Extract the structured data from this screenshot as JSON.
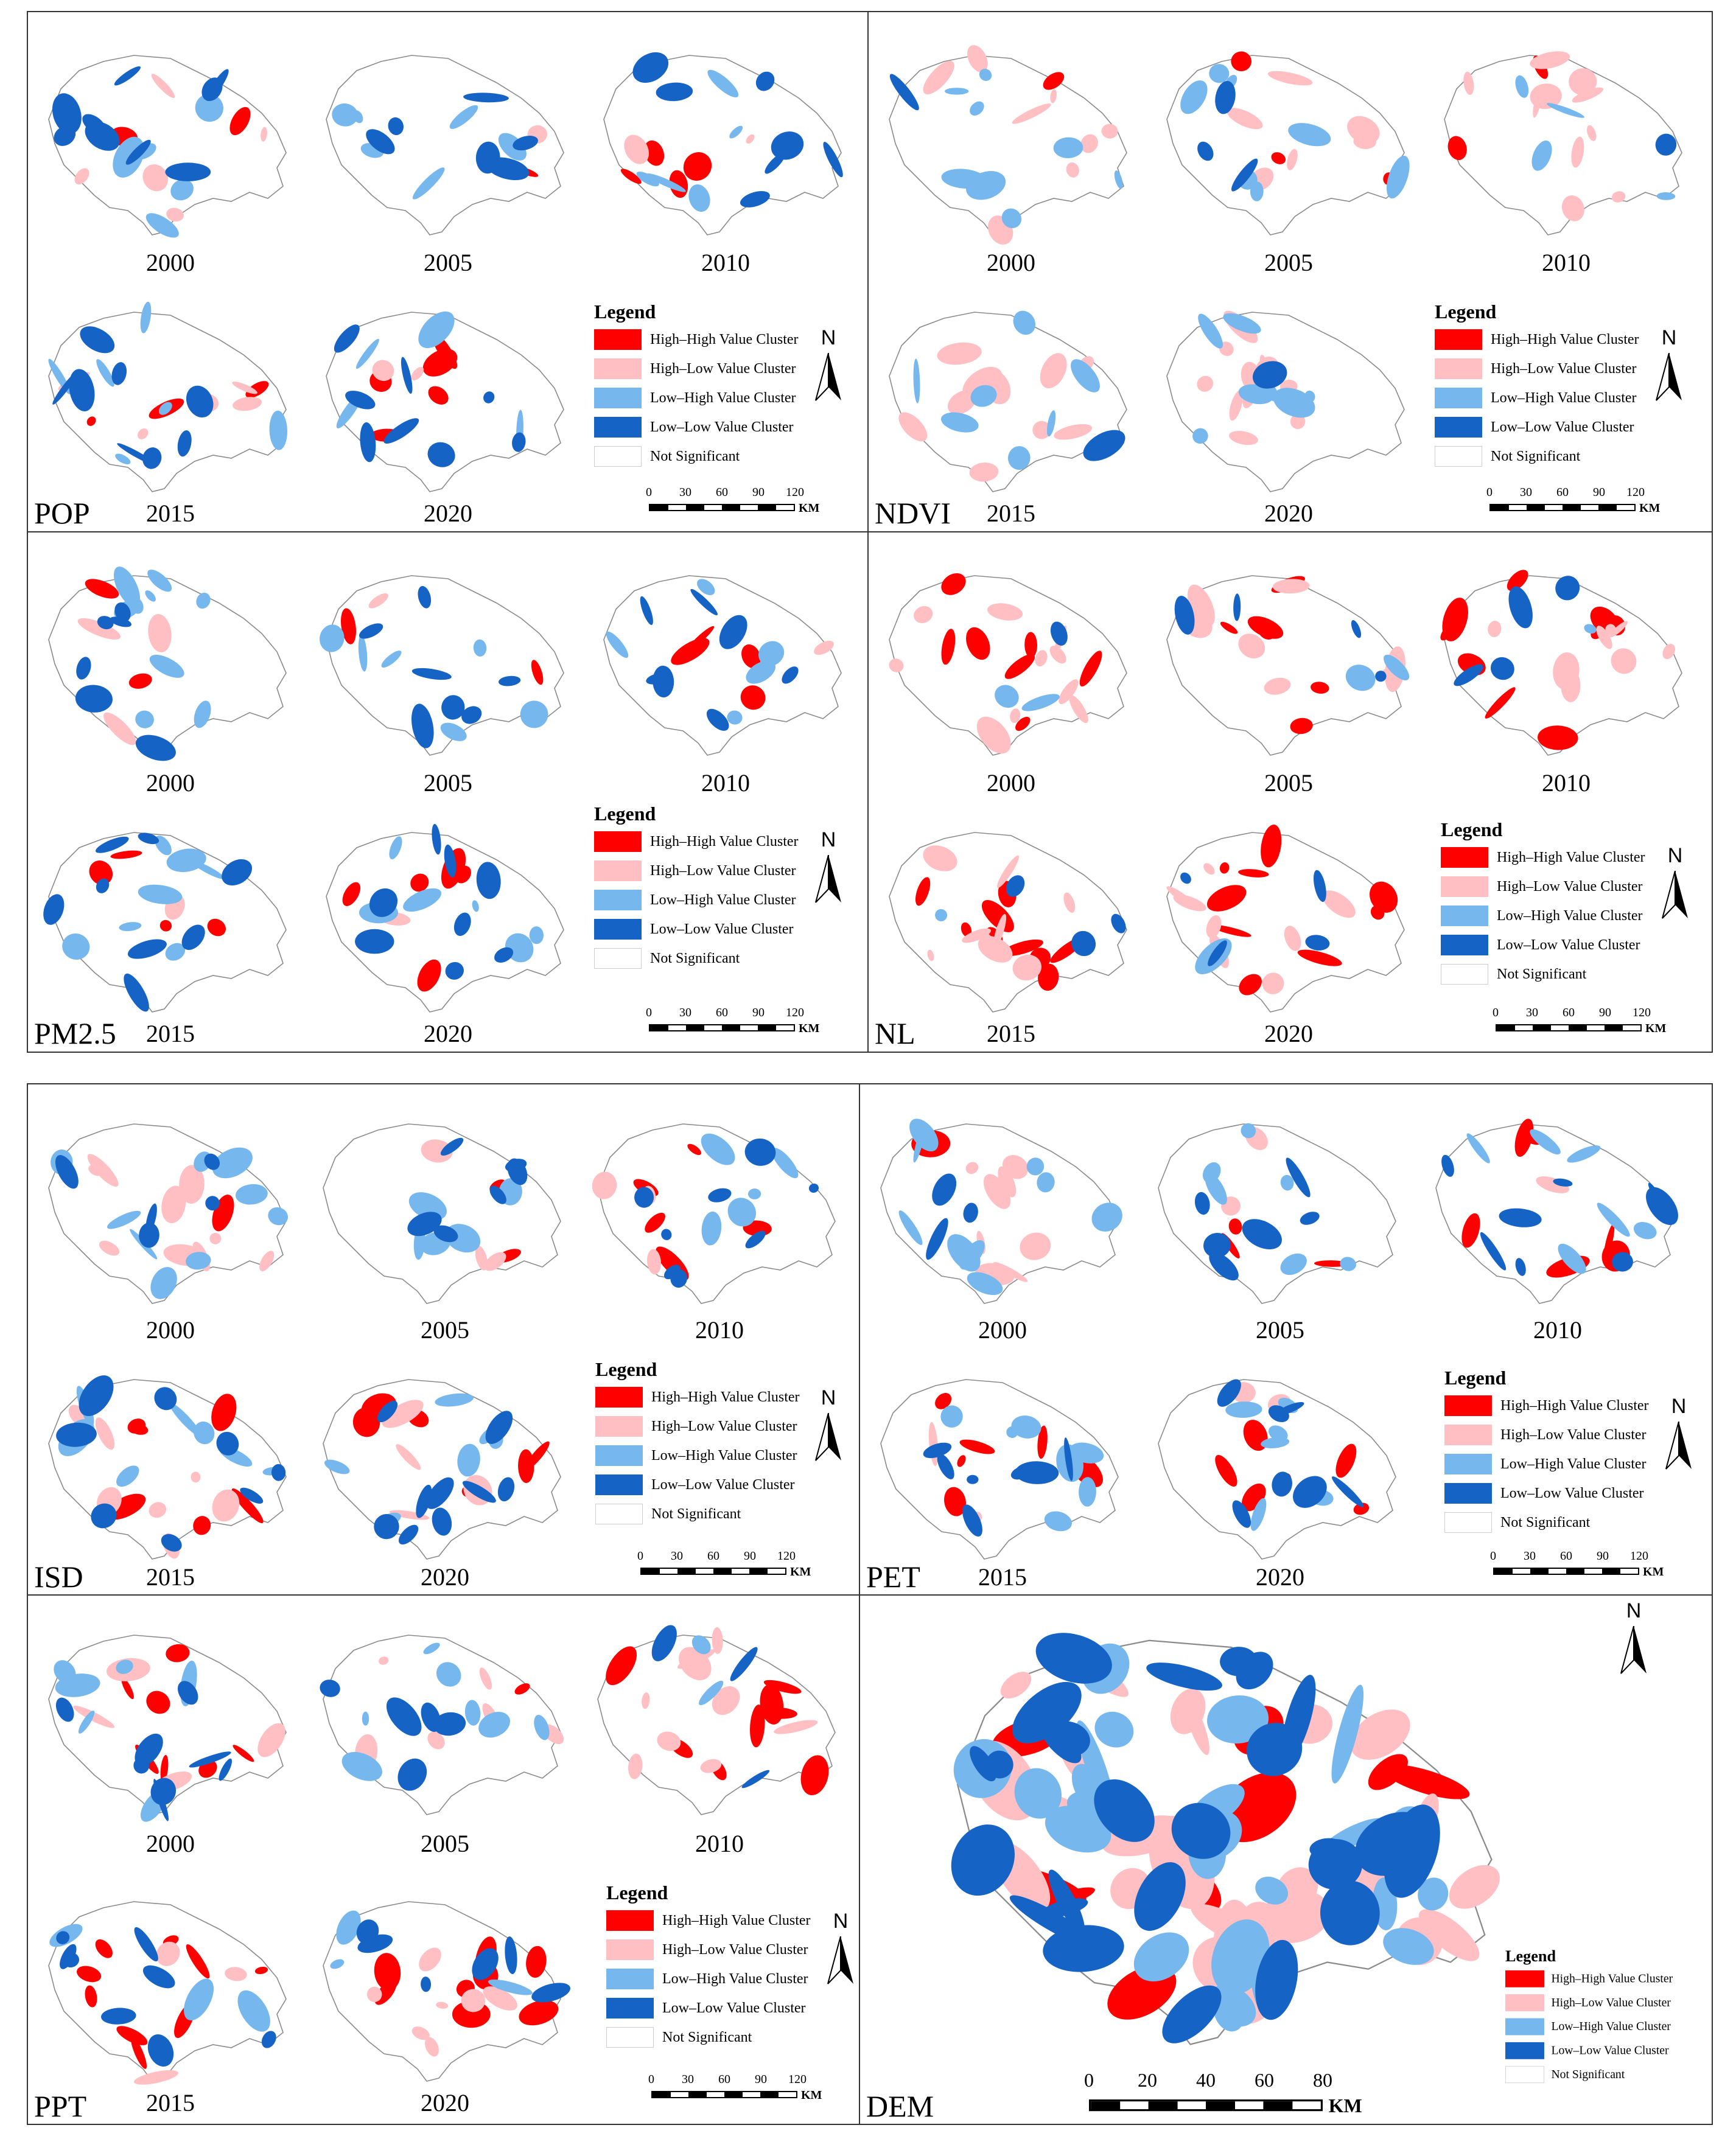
{
  "years": [
    "2000",
    "2005",
    "2010",
    "2015",
    "2020"
  ],
  "legend": {
    "title": "Legend",
    "items": [
      {
        "label": "High–High Value Cluster",
        "color": "#ff0000"
      },
      {
        "label": "High–Low Value Cluster",
        "color": "#ffbfc3"
      },
      {
        "label": "Low–High Value Cluster",
        "color": "#76b8ee"
      },
      {
        "label": "Low–Low Value Cluster",
        "color": "#1663c6"
      },
      {
        "label": "Not Significant",
        "color": "#ffffff"
      }
    ]
  },
  "north_label": "N",
  "scale": {
    "ticks": [
      "0",
      "30",
      "60",
      "90",
      "120"
    ],
    "unit": "KM"
  },
  "dem_scale": {
    "ticks": [
      "0",
      "20",
      "40",
      "60",
      "80"
    ],
    "unit": "KM"
  },
  "panels": {
    "pop": {
      "variable": "POP"
    },
    "ndvi": {
      "variable": "NDVI"
    },
    "pm25": {
      "variable": "PM2.5"
    },
    "nl": {
      "variable": "NL"
    },
    "isd": {
      "variable": "ISD"
    },
    "pet": {
      "variable": "PET"
    },
    "ppt": {
      "variable": "PPT"
    },
    "dem": {
      "variable": "DEM"
    }
  },
  "map_colors": {
    "hh": "#ff0000",
    "hl": "#ffbfc3",
    "lh": "#76b8ee",
    "ll": "#1663c6",
    "outline": "#8a8a8a"
  },
  "map_patterns": {
    "pop": [
      "hh:2,hl:5,lh:5,ll:9",
      "hh:1,hl:1,lh:6,ll:6",
      "hh:4,hl:2,lh:5,ll:7",
      "hh:3,hl:5,lh:6,ll:8",
      "hh:5,hl:2,lh:4,ll:8"
    ],
    "ndvi": [
      "hh:1,hl:9,lh:8,ll:1",
      "hh:3,hl:6,lh:7,ll:3",
      "hh:2,hl:10,lh:4,ll:1",
      "hh:0,hl:10,lh:7,ll:1",
      "hh:0,hl:11,lh:7,ll:1"
    ],
    "pm25": [
      "hh:2,hl:3,lh:9,ll:6",
      "hh:2,hl:1,lh:6,ll:7",
      "hh:4,hl:1,lh:5,ll:8",
      "hh:4,hl:1,lh:7,ll:8",
      "hh:5,hl:1,lh:6,ll:8"
    ],
    "nl": [
      "hh:8,hl:10,lh:2,ll:1",
      "hh:6,hl:7,lh:2,ll:4",
      "hh:9,hl:8,lh:1,ll:4",
      "hh:9,hl:9,lh:1,ll:3",
      "hh:9,hl:8,lh:1,ll:4"
    ],
    "isd": [
      "hh:1,hl:9,lh:9,ll:5",
      "hh:2,hl:3,lh:5,ll:6",
      "hh:5,hl:3,lh:5,ll:8",
      "hh:6,hl:7,lh:7,ll:8",
      "hh:6,hl:4,lh:6,ll:9"
    ],
    "pet": [
      "hh:1,hl:8,lh:9,ll:3",
      "hh:3,hl:2,lh:6,ll:6",
      "hh:6,hl:1,lh:6,ll:8",
      "hh:6,hl:2,lh:7,ll:7",
      "hh:7,hl:2,lh:6,ll:7"
    ],
    "ppt": [
      "hh:7,hl:5,lh:6,ll:8",
      "hh:1,hl:6,lh:7,ll:5",
      "hh:8,hl:9,lh:2,ll:3",
      "hh:9,hl:3,lh:3,ll:8",
      "hh:8,hl:7,lh:3,ll:6"
    ],
    "dem": [
      "hh:10,hl:26,lh:26,ll:26"
    ]
  }
}
